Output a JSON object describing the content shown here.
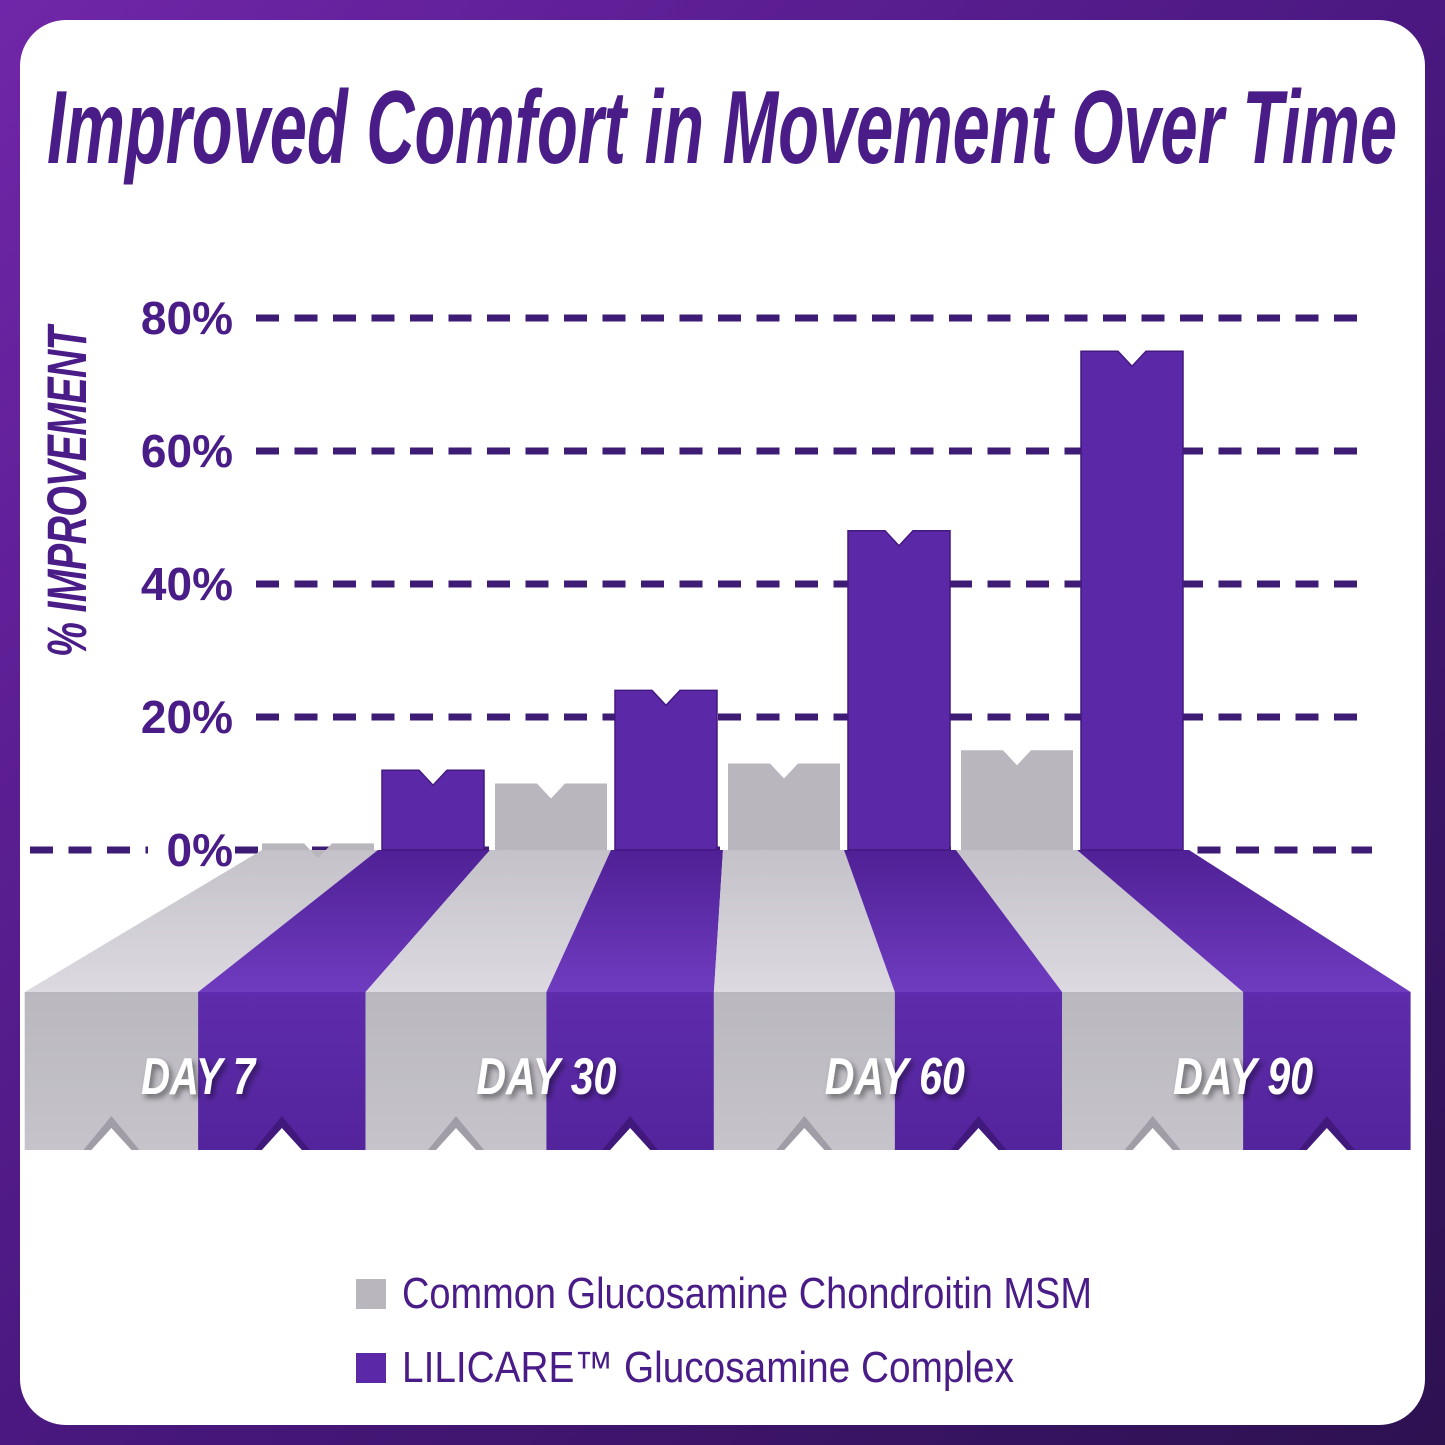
{
  "chart_data": {
    "type": "bar",
    "style": "3d-ribbon-perspective",
    "title": "Improved Comfort in Movement Over Time",
    "categories": [
      "DAY 7",
      "DAY 30",
      "DAY 60",
      "DAY 90"
    ],
    "series": [
      {
        "name": "Common Glucosamine Chondroitin MSM",
        "color": "#b9b6bd",
        "values": [
          1,
          10,
          13,
          15
        ]
      },
      {
        "name": "LILICARE™ Glucosamine Complex",
        "color": "#5b28a7",
        "values": [
          12,
          24,
          48,
          75
        ]
      }
    ],
    "xlabel": "",
    "ylabel": "% IMPROVEMENT",
    "ylim": [
      0,
      80
    ],
    "yticks": [
      0,
      20,
      40,
      60,
      80
    ],
    "ytick_labels": [
      "0%",
      "20%",
      "40%",
      "60%",
      "80%"
    ],
    "grid": "horizontal-dashed",
    "legend_position": "bottom"
  },
  "colors": {
    "frame_gradient_start": "#7026a8",
    "frame_gradient_mid": "#4a1880",
    "frame_gradient_end": "#2d1150",
    "card_bg": "#ffffff",
    "text_purple": "#491c87",
    "grid_dash": "#3e1b74",
    "bar_purple": "#5b28a7",
    "bar_gray": "#b9b6bd",
    "day_label_color": "#ffffff"
  }
}
